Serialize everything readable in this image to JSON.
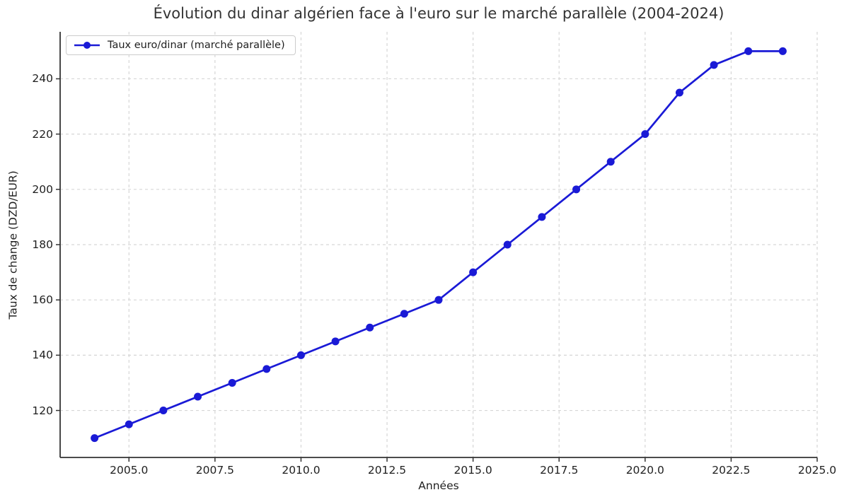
{
  "chart_data": {
    "type": "line",
    "title": "Évolution du dinar algérien face à l'euro sur le marché parallèle (2004-2024)",
    "xlabel": "Années",
    "ylabel": "Taux de change (DZD/EUR)",
    "x": [
      2004,
      2005,
      2006,
      2007,
      2008,
      2009,
      2010,
      2011,
      2012,
      2013,
      2014,
      2015,
      2016,
      2017,
      2018,
      2019,
      2020,
      2021,
      2022,
      2023,
      2024
    ],
    "series": [
      {
        "name": "Taux euro/dinar (marché parallèle)",
        "values": [
          110,
          115,
          120,
          125,
          130,
          135,
          140,
          145,
          150,
          155,
          160,
          170,
          180,
          190,
          200,
          210,
          220,
          235,
          245,
          250,
          250
        ]
      }
    ],
    "xlim": [
      2003,
      2025
    ],
    "ylim": [
      103,
      257
    ],
    "xtick_values": [
      2005,
      2007.5,
      2010,
      2012.5,
      2015,
      2017.5,
      2020,
      2022.5,
      2025
    ],
    "xtick_labels": [
      "2005.0",
      "2007.5",
      "2010.0",
      "2012.5",
      "2015.0",
      "2017.5",
      "2020.0",
      "2022.5",
      "2025.0"
    ],
    "ytick_values": [
      120,
      140,
      160,
      180,
      200,
      220,
      240
    ],
    "ytick_labels": [
      "120",
      "140",
      "160",
      "180",
      "200",
      "220",
      "240"
    ],
    "grid": true,
    "grid_style": "dashed",
    "legend_position": "upper left",
    "marker": "o",
    "colors": {
      "line": "#1a1ad6",
      "grid": "#d6d6d6",
      "spine": "#333333",
      "text": "#1f1f1f",
      "title": "#333333",
      "legend_border": "#cccccc",
      "background": "#ffffff"
    }
  }
}
